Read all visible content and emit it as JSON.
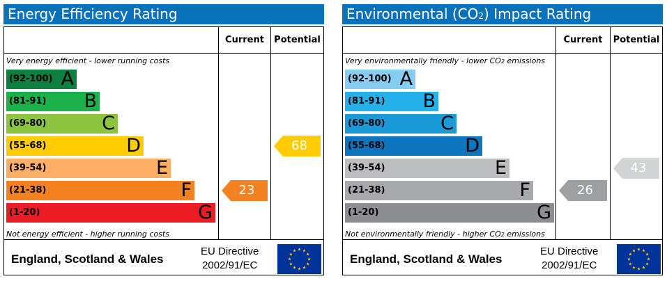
{
  "chart_data": [
    {
      "type": "bar",
      "title": "Energy Efficiency Rating",
      "columns": [
        "Current",
        "Potential"
      ],
      "top_note": "Very energy efficient - lower running costs",
      "bottom_note": "Not energy efficient - higher running costs",
      "bands": [
        {
          "range": "(92-100)",
          "letter": "A",
          "color": "#0d8040"
        },
        {
          "range": "(81-91)",
          "letter": "B",
          "color": "#1cb04b"
        },
        {
          "range": "(69-80)",
          "letter": "C",
          "color": "#8cc43f"
        },
        {
          "range": "(55-68)",
          "letter": "D",
          "color": "#ffcc00"
        },
        {
          "range": "(39-54)",
          "letter": "E",
          "color": "#fcaf65"
        },
        {
          "range": "(21-38)",
          "letter": "F",
          "color": "#f58220"
        },
        {
          "range": "(1-20)",
          "letter": "G",
          "color": "#ec1c24"
        }
      ],
      "current": {
        "value": 23,
        "band": "F",
        "color": "#f58220"
      },
      "potential": {
        "value": 68,
        "band": "D",
        "color": "#ffcc00"
      },
      "footer": {
        "country": "England, Scotland & Wales",
        "directive_line1": "EU Directive",
        "directive_line2": "2002/91/EC"
      }
    },
    {
      "type": "bar",
      "title": "Environmental (CO",
      "title_sub": "2",
      "title_suffix": ") Impact Rating",
      "columns": [
        "Current",
        "Potential"
      ],
      "top_note": "Very environmentally friendly - lower CO",
      "top_note_sub": "2",
      "top_note_suffix": " emissions",
      "bottom_note": "Not environmentally friendly - higher CO",
      "bottom_note_sub": "2",
      "bottom_note_suffix": " emissions",
      "bands": [
        {
          "range": "(92-100)",
          "letter": "A",
          "color": "#87cdf1"
        },
        {
          "range": "(81-91)",
          "letter": "B",
          "color": "#25b2ea"
        },
        {
          "range": "(69-80)",
          "letter": "C",
          "color": "#1b9ad8"
        },
        {
          "range": "(55-68)",
          "letter": "D",
          "color": "#0d75bd"
        },
        {
          "range": "(39-54)",
          "letter": "E",
          "color": "#bbbdbf"
        },
        {
          "range": "(21-38)",
          "letter": "F",
          "color": "#a7a9ac"
        },
        {
          "range": "(1-20)",
          "letter": "G",
          "color": "#8c8e91"
        }
      ],
      "current": {
        "value": 26,
        "band": "F",
        "color": "#9d9fa2"
      },
      "potential": {
        "value": 43,
        "band": "E",
        "color": "#d1d3d4"
      },
      "footer": {
        "country": "England, Scotland & Wales",
        "directive_line1": "EU Directive",
        "directive_line2": "2002/91/EC"
      }
    }
  ],
  "colors": {
    "title_bar": "#0a72bb",
    "flag_blue": "#003399",
    "flag_star": "#ffcc00"
  },
  "icons": {
    "eu_flag": "eu-flag-icon"
  }
}
